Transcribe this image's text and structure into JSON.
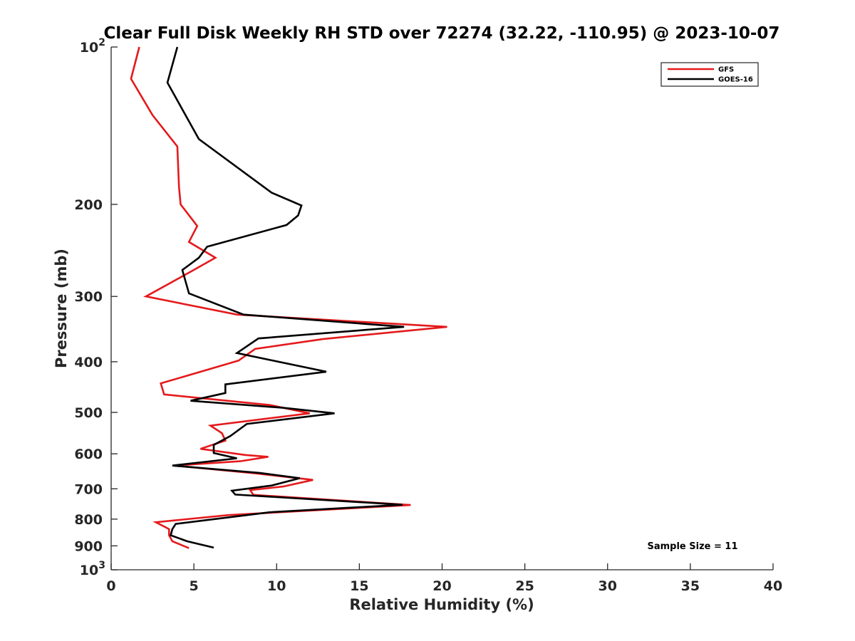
{
  "chart_data": {
    "type": "line",
    "title": "Clear Full Disk Weekly RH STD over 72274 (32.22, -110.95) @ 2023-10-07",
    "xlabel": "Relative Humidity (%)",
    "ylabel": "Pressure (mb)",
    "xlim": [
      0,
      40
    ],
    "ylim": [
      1000,
      100
    ],
    "y_scale": "log",
    "y_reversed": true,
    "grid": false,
    "legend_position": "top-right",
    "x_ticks": [
      "0",
      "5",
      "10",
      "15",
      "20",
      "25",
      "30",
      "35",
      "40"
    ],
    "y_ticks": [
      {
        "value": 100,
        "label": "10",
        "sup": "2"
      },
      {
        "value": 200,
        "label": "200",
        "sup": ""
      },
      {
        "value": 300,
        "label": "300",
        "sup": ""
      },
      {
        "value": 400,
        "label": "400",
        "sup": ""
      },
      {
        "value": 500,
        "label": "500",
        "sup": ""
      },
      {
        "value": 600,
        "label": "600",
        "sup": ""
      },
      {
        "value": 700,
        "label": "700",
        "sup": ""
      },
      {
        "value": 800,
        "label": "800",
        "sup": ""
      },
      {
        "value": 900,
        "label": "900",
        "sup": ""
      },
      {
        "value": 1000,
        "label": "10",
        "sup": "3"
      }
    ],
    "annotation": "Sample Size = 11",
    "series": [
      {
        "name": "GFS",
        "color": "#e41a1c",
        "points": [
          [
            1.7,
            100
          ],
          [
            1.2,
            115
          ],
          [
            2.5,
            135
          ],
          [
            4.0,
            155
          ],
          [
            4.1,
            185
          ],
          [
            4.2,
            200
          ],
          [
            5.2,
            220
          ],
          [
            4.7,
            236
          ],
          [
            6.3,
            253
          ],
          [
            4.9,
            268
          ],
          [
            2.1,
            300
          ],
          [
            7.6,
            325
          ],
          [
            20.3,
            343
          ],
          [
            12.8,
            362
          ],
          [
            8.7,
            378
          ],
          [
            7.7,
            398
          ],
          [
            3.0,
            440
          ],
          [
            3.2,
            462
          ],
          [
            9.6,
            484
          ],
          [
            12.0,
            502
          ],
          [
            6.0,
            530
          ],
          [
            6.7,
            548
          ],
          [
            6.9,
            566
          ],
          [
            5.4,
            587
          ],
          [
            8.1,
            603
          ],
          [
            9.5,
            608
          ],
          [
            7.8,
            620
          ],
          [
            3.8,
            632
          ],
          [
            8.7,
            654
          ],
          [
            12.2,
            673
          ],
          [
            10.4,
            693
          ],
          [
            8.4,
            704
          ],
          [
            8.6,
            719
          ],
          [
            18.1,
            752
          ],
          [
            7.1,
            786
          ],
          [
            2.7,
            811
          ],
          [
            3.5,
            836
          ],
          [
            3.5,
            859
          ],
          [
            3.7,
            882
          ],
          [
            4.7,
            909
          ]
        ]
      },
      {
        "name": "GOES-16",
        "color": "#000000",
        "points": [
          [
            4.0,
            100
          ],
          [
            3.4,
            117
          ],
          [
            5.3,
            150
          ],
          [
            9.7,
            190
          ],
          [
            11.5,
            201
          ],
          [
            11.3,
            210
          ],
          [
            10.6,
            219
          ],
          [
            5.8,
            241
          ],
          [
            5.3,
            253
          ],
          [
            4.3,
            267
          ],
          [
            4.7,
            296
          ],
          [
            8.0,
            325
          ],
          [
            17.7,
            343
          ],
          [
            8.9,
            361
          ],
          [
            7.6,
            385
          ],
          [
            13.0,
            418
          ],
          [
            6.9,
            442
          ],
          [
            6.9,
            459
          ],
          [
            4.8,
            475
          ],
          [
            10.4,
            490
          ],
          [
            13.5,
            502
          ],
          [
            8.2,
            526
          ],
          [
            7.2,
            555
          ],
          [
            6.2,
            577
          ],
          [
            6.2,
            598
          ],
          [
            7.6,
            612
          ],
          [
            3.7,
            632
          ],
          [
            9.0,
            653
          ],
          [
            11.4,
            668
          ],
          [
            9.7,
            690
          ],
          [
            7.3,
            706
          ],
          [
            7.5,
            718
          ],
          [
            17.6,
            751
          ],
          [
            9.6,
            776
          ],
          [
            3.9,
            817
          ],
          [
            3.7,
            836
          ],
          [
            3.6,
            859
          ],
          [
            4.6,
            882
          ],
          [
            6.2,
            907
          ]
        ]
      }
    ]
  }
}
